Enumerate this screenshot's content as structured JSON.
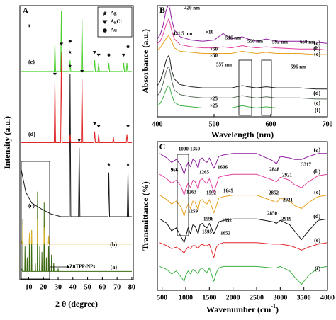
{
  "chart_data": [
    {
      "type": "line",
      "panel_label": "A",
      "x_label": [
        "2 θ (degree)"
      ],
      "y_label": "Intensity (a.u.)",
      "xlim": [
        4,
        81
      ],
      "ylim": [
        0,
        100
      ],
      "xticks": [
        10,
        20,
        30,
        40,
        50,
        60,
        70,
        80
      ],
      "series": [
        {
          "name": "(a)",
          "color": "#3d6b12",
          "x": [
            5,
            5.8,
            5.9,
            6,
            6.2,
            7.3,
            7.5,
            7.7,
            8.8,
            9,
            9.2,
            10.3,
            10.5,
            10.7,
            11.8,
            12,
            12.2,
            14.3,
            14.5,
            14.7,
            15.8,
            16,
            16.2,
            17.3,
            17.5,
            17.7,
            18.8,
            19,
            19.2,
            20.3,
            20.5,
            20.7,
            21.8,
            22,
            22.2,
            23.3,
            23.5,
            23.7,
            25.3,
            25.5,
            25.7,
            26.8,
            27,
            27.2,
            29.8,
            30,
            30.2,
            50,
            80
          ],
          "values": [
            4,
            3,
            3,
            22,
            3,
            3,
            12,
            3,
            3,
            8,
            3,
            3,
            14,
            3,
            3,
            18,
            3,
            3,
            6,
            3,
            3,
            32,
            3,
            3,
            12,
            3,
            3,
            10,
            3,
            3,
            28,
            3,
            3,
            8,
            3,
            3,
            12,
            3,
            3,
            9,
            3,
            3,
            6,
            3,
            3,
            4,
            3,
            3,
            3
          ]
        },
        {
          "name": "(b)",
          "color": "#d9b227",
          "x": [
            5,
            5.8,
            6,
            6.2,
            10.3,
            10.5,
            10.7,
            11.8,
            12,
            12.2,
            15.8,
            16,
            16.2,
            20.3,
            20.5,
            20.7,
            23.3,
            23.5,
            23.7,
            50,
            80
          ],
          "values": [
            14,
            13,
            20,
            13,
            13,
            17,
            13,
            13,
            18,
            13,
            13,
            22,
            13,
            13,
            19,
            13,
            13,
            16,
            13,
            13,
            13
          ]
        },
        {
          "name": "(c)",
          "color": "#1a1a1a",
          "x": [
            5,
            8,
            12,
            18,
            25,
            32,
            37.6,
            38.1,
            38.6,
            43.8,
            44.3,
            44.8,
            63.9,
            64.4,
            64.9,
            76.9,
            77.4,
            77.9,
            80
          ],
          "values": [
            40,
            32,
            28,
            26,
            24,
            23,
            23,
            75,
            23,
            23,
            48,
            23,
            23,
            39,
            23,
            23,
            39,
            23,
            23
          ]
        },
        {
          "name": "(d)",
          "color": "#e0272a",
          "x": [
            5,
            27.3,
            27.8,
            28.3,
            31.7,
            32.2,
            32.7,
            37.6,
            38.1,
            38.6,
            45.7,
            46.2,
            46.7,
            54.3,
            54.8,
            55.3,
            57,
            57.5,
            58,
            67,
            67.5,
            68,
            76.2,
            76.7,
            77.2,
            80
          ],
          "values": [
            50,
            50,
            72,
            50,
            50,
            83,
            50,
            50,
            53,
            50,
            50,
            73,
            50,
            50,
            54,
            50,
            50,
            53,
            50,
            50,
            52,
            50,
            50,
            53,
            50,
            50
          ]
        },
        {
          "name": "(e)",
          "color": "#4ccf2f",
          "x": [
            5,
            27.3,
            27.8,
            28.3,
            31.7,
            32.2,
            32.7,
            37.6,
            38.1,
            38.6,
            45.7,
            46.2,
            46.7,
            54.3,
            54.8,
            55.3,
            57,
            57.5,
            58,
            63.9,
            64.4,
            64.9,
            74,
            74.5,
            75,
            76.2,
            76.7,
            77.2,
            80
          ],
          "values": [
            76,
            76,
            86,
            76,
            76,
            98,
            76,
            76,
            80,
            76,
            76,
            95,
            76,
            76,
            80,
            76,
            76,
            79,
            76,
            76,
            79,
            76,
            76,
            79,
            76,
            76,
            79,
            76,
            76
          ]
        }
      ],
      "legend": [
        {
          "label": "Ag",
          "symbol": "star",
          "peaks": [
            [
              38.1,
              78
            ],
            [
              44.3,
              51
            ],
            [
              64.4,
              42
            ],
            [
              77.4,
              42
            ],
            [
              38.1,
              83
            ]
          ]
        },
        {
          "label": "AgCl",
          "symbol": "triangle",
          "peaks": [
            [
              27.8,
              75
            ],
            [
              32.2,
              86
            ],
            [
              46.2,
              76
            ],
            [
              54.8,
              57
            ],
            [
              57.5,
              56
            ],
            [
              77.4,
              56
            ],
            [
              54.8,
              83
            ],
            [
              57.5,
              82
            ],
            [
              74.5,
              82
            ]
          ]
        },
        {
          "label": "Au",
          "symbol": "circle",
          "peaks": [
            [
              38.1,
              87
            ],
            [
              64.4,
              82
            ],
            [
              77.4,
              85
            ]
          ]
        }
      ],
      "annotations": [
        "A",
        "ZnTPP-NPs"
      ]
    },
    {
      "type": "line",
      "panel_label": "B",
      "x_label": [
        "Wavelength (nm)"
      ],
      "y_label": "Absorbance (a.u.)",
      "xlim": [
        400,
        700
      ],
      "ylim": [
        0,
        100
      ],
      "xticks": [
        400,
        500,
        600,
        700
      ],
      "x": [
        400,
        405,
        410,
        415,
        418,
        420,
        422,
        425,
        430,
        440,
        460,
        480,
        500,
        516,
        530,
        550,
        560,
        575,
        592,
        610,
        650,
        680,
        700
      ],
      "series": [
        {
          "name": "(a)",
          "color": "#8e1f9e",
          "values": [
            70,
            74,
            82,
            95,
            99,
            100,
            97,
            88,
            78,
            72,
            69,
            68,
            69,
            75,
            70,
            72,
            70,
            68,
            70,
            68,
            68,
            67,
            66
          ]
        },
        {
          "name": "(b)",
          "color": "#e2409f",
          "values": [
            66,
            68,
            74,
            82,
            86,
            88,
            85,
            78,
            70,
            65,
            63,
            62,
            62,
            63,
            62,
            64,
            63,
            62,
            63,
            62,
            61,
            61,
            60
          ]
        },
        {
          "name": "(c)",
          "color": "#e8a21f",
          "values": [
            60,
            62,
            66,
            70,
            72,
            73,
            71,
            68,
            62,
            59,
            58,
            57,
            57,
            57,
            57,
            59,
            58,
            57,
            58,
            57,
            57,
            56,
            56
          ]
        },
        {
          "name": "(d)",
          "color": "#222222",
          "values": [
            28,
            32,
            40,
            50,
            54,
            55,
            52,
            42,
            34,
            29,
            27,
            26,
            26,
            26,
            26,
            28,
            27,
            26,
            27,
            26,
            26,
            25,
            25
          ]
        },
        {
          "name": "(e)",
          "color": "#5b6e5b",
          "values": [
            19,
            22,
            30,
            40,
            44,
            45,
            42,
            33,
            24,
            20,
            18,
            17,
            17,
            17,
            17,
            19,
            18,
            17,
            18,
            17,
            17,
            16,
            16
          ]
        },
        {
          "name": "(f)",
          "color": "#3cb043",
          "values": [
            10,
            12,
            17,
            24,
            27,
            28,
            26,
            20,
            13,
            10,
            9,
            8,
            8,
            8,
            8,
            10,
            9,
            8,
            9,
            8,
            8,
            8,
            8
          ]
        }
      ],
      "annotations": [
        "420 nm",
        "421.5 nm",
        "516 nm",
        "550 nm",
        "592 nm",
        "650 nm",
        "×10",
        "×50",
        "×50",
        "557 nm",
        "596 nm",
        "×25",
        "×25"
      ]
    },
    {
      "type": "line",
      "panel_label": "C",
      "x_label": [
        "Wavenumber (cm",
        "-1",
        ")"
      ],
      "y_label": "Transmittance (%)",
      "xlim": [
        400,
        4000
      ],
      "ylim": [
        0,
        100
      ],
      "xticks": [
        500,
        1000,
        1500,
        2000,
        2500,
        3000,
        3500,
        4000
      ],
      "x": [
        450,
        600,
        700,
        800,
        900,
        966,
        1000,
        1050,
        1100,
        1150,
        1200,
        1263,
        1300,
        1350,
        1400,
        1450,
        1500,
        1595,
        1650,
        1700,
        1800,
        2000,
        2500,
        2850,
        2920,
        3000,
        3200,
        3300,
        3450,
        3600,
        3800,
        4000
      ],
      "series": [
        {
          "name": "(a)",
          "color": "#8e1f9e",
          "values": [
            92,
            89,
            86,
            88,
            84,
            78,
            82,
            86,
            83,
            88,
            87,
            82,
            88,
            89,
            87,
            86,
            89,
            82,
            86,
            90,
            91,
            92,
            92,
            87,
            85,
            90,
            89,
            88,
            88,
            90,
            92,
            92
          ]
        },
        {
          "name": "(b)",
          "color": "#e2409f",
          "values": [
            78,
            75,
            72,
            74,
            70,
            64,
            68,
            72,
            69,
            74,
            73,
            68,
            74,
            75,
            73,
            72,
            75,
            66,
            71,
            76,
            77,
            78,
            78,
            74,
            73,
            76,
            74,
            71,
            69,
            73,
            77,
            78
          ]
        },
        {
          "name": "(c)",
          "color": "#e8a21f",
          "values": [
            64,
            61,
            58,
            60,
            56,
            50,
            54,
            58,
            55,
            60,
            59,
            54,
            60,
            61,
            59,
            58,
            61,
            52,
            57,
            62,
            63,
            64,
            64,
            60,
            59,
            62,
            60,
            57,
            55,
            59,
            63,
            64
          ]
        },
        {
          "name": "(d)",
          "color": "#111111",
          "values": [
            48,
            45,
            40,
            42,
            36,
            32,
            36,
            42,
            38,
            44,
            43,
            38,
            44,
            45,
            43,
            42,
            45,
            38,
            42,
            46,
            47,
            48,
            48,
            46,
            45,
            47,
            44,
            40,
            34,
            40,
            47,
            48
          ]
        },
        {
          "name": "(e)",
          "color": "#e0272a",
          "values": [
            32,
            30,
            28,
            29,
            27,
            25,
            27,
            29,
            28,
            30,
            30,
            28,
            30,
            31,
            30,
            30,
            31,
            22,
            29,
            31,
            32,
            32,
            32,
            31,
            31,
            31,
            30,
            29,
            27,
            29,
            31,
            32
          ]
        },
        {
          "name": "(f)",
          "color": "#3cb043",
          "values": [
            16,
            14,
            11,
            13,
            9,
            6,
            10,
            13,
            11,
            14,
            13,
            11,
            14,
            15,
            13,
            12,
            15,
            6,
            12,
            15,
            16,
            16,
            16,
            15,
            15,
            16,
            13,
            9,
            4,
            10,
            15,
            16
          ]
        }
      ],
      "annotations": [
        "1000-1350",
        "966",
        "1265",
        "1606",
        "2848",
        "2921",
        "3317",
        "1263",
        "1592",
        "1649",
        "2852",
        "2921",
        "1259",
        "1596",
        "1652",
        "2850",
        "2919",
        "1595",
        "1652"
      ]
    }
  ]
}
